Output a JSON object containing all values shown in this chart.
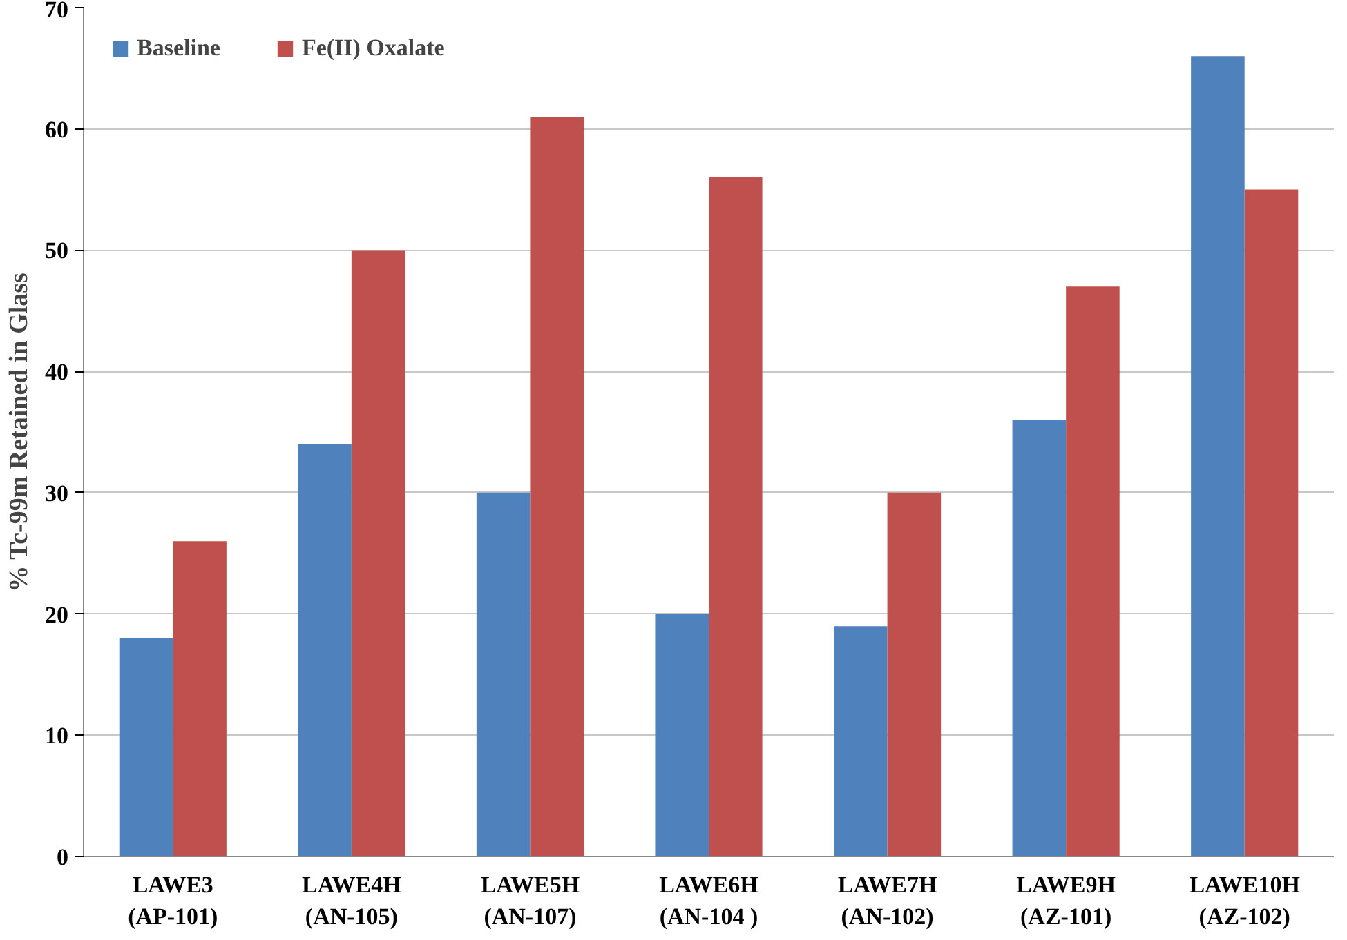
{
  "chart_data": {
    "type": "bar",
    "ylabel": "% Tc-99m Retained in Glass",
    "categories": [
      "LAWE3\n(AP-101)",
      "LAWE4H\n(AN-105)",
      "LAWE5H\n(AN-107)",
      "LAWE6H\n(AN-104 )",
      "LAWE7H\n(AN-102)",
      "LAWE9H\n(AZ-101)",
      "LAWE10H\n(AZ-102)"
    ],
    "series": [
      {
        "name": "Baseline",
        "color": "#4f81bd",
        "values": [
          18,
          34,
          30,
          20,
          19,
          36,
          66
        ]
      },
      {
        "name": "Fe(II) Oxalate",
        "color": "#c0504d",
        "values": [
          26,
          50,
          61,
          56,
          30,
          47,
          55
        ]
      }
    ],
    "ylim": [
      0,
      70
    ],
    "yticks": [
      0,
      10,
      20,
      30,
      40,
      50,
      60,
      70
    ],
    "grid": "y",
    "legend": "top left"
  }
}
